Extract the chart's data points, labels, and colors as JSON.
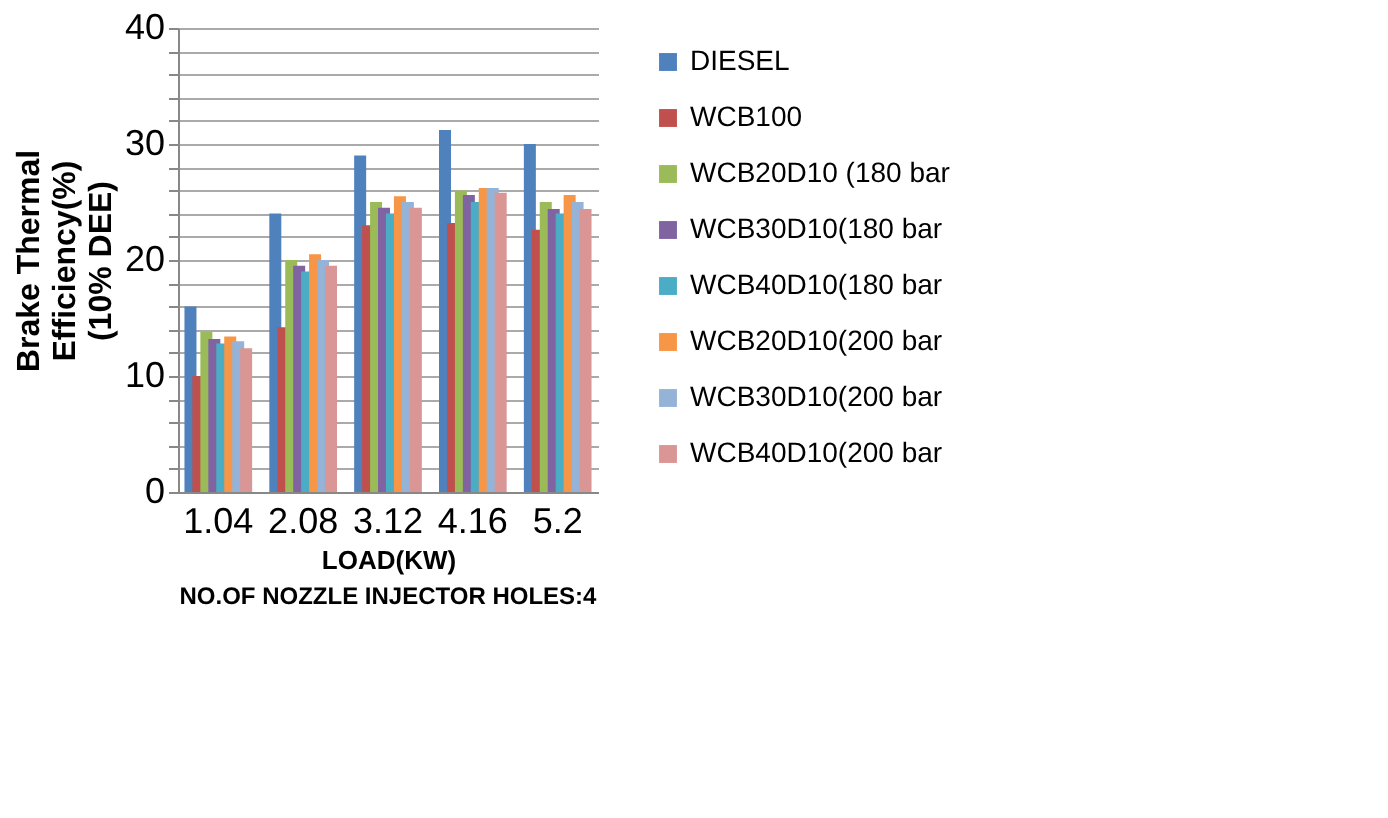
{
  "chart_data": {
    "type": "bar",
    "categories": [
      "1.04",
      "2.08",
      "3.12",
      "4.16",
      "5.2"
    ],
    "xlabel": "LOAD(KW)",
    "ylabel": "Brake Thermal\nEfficiency(%)\n(10% DEE)",
    "annotations": [
      "NO.OF NOZZLE INJECTOR HOLES:4"
    ],
    "series": [
      {
        "name": "DIESEL",
        "color": "#4f81bd",
        "values": [
          16,
          24,
          29,
          31.2,
          30
        ]
      },
      {
        "name": "WCB100",
        "color": "#c0504d",
        "values": [
          10,
          14.2,
          23,
          23.2,
          22.6
        ]
      },
      {
        "name": "WCB20D10 (180 bar",
        "color": "#9bbb59",
        "values": [
          13.8,
          20,
          25,
          26,
          25
        ]
      },
      {
        "name": "WCB30D10(180 bar",
        "color": "#8064a2",
        "values": [
          13.2,
          19.5,
          24.5,
          25.6,
          24.4
        ]
      },
      {
        "name": "WCB40D10(180 bar",
        "color": "#4bacc6",
        "values": [
          12.8,
          19,
          24,
          25,
          24
        ]
      },
      {
        "name": "WCB20D10(200 bar",
        "color": "#f79646",
        "values": [
          13.4,
          20.5,
          25.5,
          26.2,
          25.6
        ]
      },
      {
        "name": "WCB30D10(200 bar",
        "color": "#95b3d7",
        "values": [
          13,
          20,
          25,
          26.2,
          25
        ]
      },
      {
        "name": "WCB40D10(200 bar",
        "color": "#d99694",
        "values": [
          12.4,
          19.5,
          24.5,
          25.8,
          24.4
        ]
      }
    ],
    "ylim": [
      0,
      40
    ],
    "yticks": [
      0,
      {
        "value": 2,
        "label": null
      },
      {
        "value": 4,
        "label": null
      },
      {
        "value": 6,
        "label": null
      },
      {
        "value": 8,
        "label": null
      },
      10,
      {
        "value": 12,
        "label": null
      },
      {
        "value": 14,
        "label": null
      },
      {
        "value": 16,
        "label": null
      },
      {
        "value": 18,
        "label": null
      },
      20,
      {
        "value": 22,
        "label": null
      },
      {
        "value": 24,
        "label": null
      },
      {
        "value": 26,
        "label": null
      },
      {
        "value": 28,
        "label": null
      },
      30,
      {
        "value": 32,
        "label": null
      },
      {
        "value": 34,
        "label": null
      },
      {
        "value": 36,
        "label": null
      },
      {
        "value": 38,
        "label": null
      },
      40
    ],
    "grid": "y",
    "legend": "right"
  }
}
